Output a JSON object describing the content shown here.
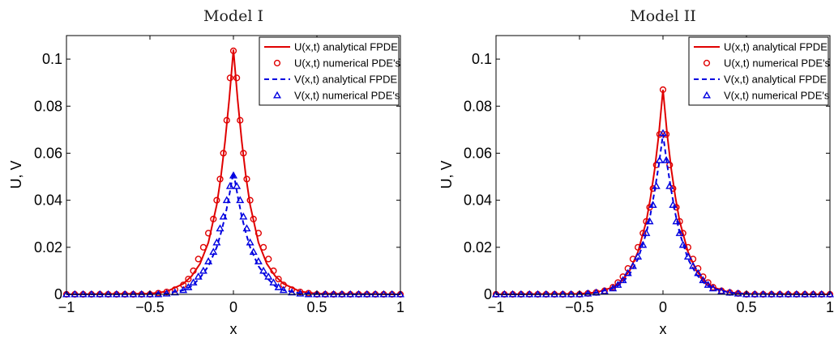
{
  "chart_data": [
    {
      "type": "line",
      "title": "Model I",
      "xlabel": "x",
      "ylabel": "U, V",
      "xlim": [
        -1,
        1
      ],
      "ylim": [
        0,
        0.11
      ],
      "xticks": [
        -1,
        -0.5,
        0,
        0.5,
        1
      ],
      "xtick_labels": [
        "−1",
        "−0.5",
        "0",
        "0.5",
        "1"
      ],
      "yticks": [
        0,
        0.02,
        0.04,
        0.06,
        0.08,
        0.1
      ],
      "ytick_labels": [
        "0",
        "0.02",
        "0.04",
        "0.06",
        "0.08",
        "0.1"
      ],
      "grid": false,
      "legend_position": "top-right",
      "colors": {
        "U": "#e00000",
        "V": "#0000e0"
      },
      "series": [
        {
          "name": "U(x,t) analytical FPDE",
          "style": "solid-line",
          "color": "#e00000",
          "x": [
            -1,
            -0.5,
            -0.4,
            -0.3,
            -0.25,
            -0.2,
            -0.15,
            -0.1,
            -0.075,
            -0.05,
            -0.025,
            0,
            0.025,
            0.05,
            0.075,
            0.1,
            0.15,
            0.2,
            0.25,
            0.3,
            0.4,
            0.5,
            1
          ],
          "y": [
            0.0,
            0.0003,
            0.0012,
            0.0045,
            0.0078,
            0.013,
            0.022,
            0.038,
            0.05,
            0.065,
            0.083,
            0.104,
            0.083,
            0.065,
            0.05,
            0.038,
            0.022,
            0.013,
            0.0078,
            0.0045,
            0.0012,
            0.0003,
            0.0
          ]
        },
        {
          "name": "U(x,t) numerical PDE's",
          "style": "circle-markers",
          "color": "#e00000",
          "x": [
            -1,
            -0.95,
            -0.9,
            -0.85,
            -0.8,
            -0.75,
            -0.7,
            -0.65,
            -0.6,
            -0.55,
            -0.5,
            -0.45,
            -0.4,
            -0.35,
            -0.3,
            -0.27,
            -0.24,
            -0.21,
            -0.18,
            -0.15,
            -0.12,
            -0.1,
            -0.08,
            -0.06,
            -0.04,
            -0.02,
            0,
            0.02,
            0.04,
            0.06,
            0.08,
            0.1,
            0.12,
            0.15,
            0.18,
            0.21,
            0.24,
            0.27,
            0.3,
            0.35,
            0.4,
            0.45,
            0.5,
            0.55,
            0.6,
            0.65,
            0.7,
            0.75,
            0.8,
            0.85,
            0.9,
            0.95,
            1
          ],
          "y": [
            0,
            0,
            0,
            0,
            0,
            0,
            0,
            0,
            0,
            0,
            0,
            0.0005,
            0.001,
            0.002,
            0.004,
            0.0065,
            0.01,
            0.015,
            0.02,
            0.026,
            0.032,
            0.04,
            0.049,
            0.06,
            0.074,
            0.092,
            0.1035,
            0.092,
            0.074,
            0.06,
            0.049,
            0.04,
            0.032,
            0.026,
            0.02,
            0.015,
            0.01,
            0.0065,
            0.004,
            0.002,
            0.001,
            0.0005,
            0,
            0,
            0,
            0,
            0,
            0,
            0,
            0,
            0,
            0,
            0
          ]
        },
        {
          "name": "V(x,t) analytical FPDE",
          "style": "dashed-line",
          "color": "#0000e0",
          "x": [
            -1,
            -0.5,
            -0.4,
            -0.3,
            -0.25,
            -0.2,
            -0.15,
            -0.1,
            -0.075,
            -0.05,
            -0.025,
            0,
            0.025,
            0.05,
            0.075,
            0.1,
            0.15,
            0.2,
            0.25,
            0.3,
            0.4,
            0.5,
            1
          ],
          "y": [
            0.0,
            0.0001,
            0.0004,
            0.0018,
            0.0035,
            0.007,
            0.012,
            0.02,
            0.026,
            0.033,
            0.042,
            0.052,
            0.042,
            0.033,
            0.026,
            0.02,
            0.012,
            0.007,
            0.0035,
            0.0018,
            0.0004,
            0.0001,
            0.0
          ]
        },
        {
          "name": "V(x,t) numerical PDE's",
          "style": "triangle-markers",
          "color": "#0000e0",
          "x": [
            -1,
            -0.95,
            -0.9,
            -0.85,
            -0.8,
            -0.75,
            -0.7,
            -0.65,
            -0.6,
            -0.55,
            -0.5,
            -0.45,
            -0.4,
            -0.35,
            -0.3,
            -0.27,
            -0.24,
            -0.21,
            -0.18,
            -0.15,
            -0.12,
            -0.1,
            -0.08,
            -0.06,
            -0.04,
            -0.02,
            0,
            0.02,
            0.04,
            0.06,
            0.08,
            0.1,
            0.12,
            0.15,
            0.18,
            0.21,
            0.24,
            0.27,
            0.3,
            0.35,
            0.4,
            0.45,
            0.5,
            0.55,
            0.6,
            0.65,
            0.7,
            0.75,
            0.8,
            0.85,
            0.9,
            0.95,
            1
          ],
          "y": [
            0,
            0,
            0,
            0,
            0,
            0,
            0,
            0,
            0,
            0,
            0,
            0,
            0.0003,
            0.0008,
            0.0018,
            0.003,
            0.005,
            0.0075,
            0.01,
            0.014,
            0.018,
            0.022,
            0.028,
            0.033,
            0.04,
            0.046,
            0.0505,
            0.046,
            0.04,
            0.033,
            0.028,
            0.022,
            0.018,
            0.014,
            0.01,
            0.0075,
            0.005,
            0.003,
            0.0018,
            0.0008,
            0.0003,
            0,
            0,
            0,
            0,
            0,
            0,
            0,
            0,
            0,
            0,
            0,
            0
          ]
        }
      ]
    },
    {
      "type": "line",
      "title": "Model II",
      "xlabel": "x",
      "ylabel": "U, V",
      "xlim": [
        -1,
        1
      ],
      "ylim": [
        0,
        0.11
      ],
      "xticks": [
        -1,
        -0.5,
        0,
        0.5,
        1
      ],
      "xtick_labels": [
        "−1",
        "−0.5",
        "0",
        "0.5",
        "1"
      ],
      "yticks": [
        0,
        0.02,
        0.04,
        0.06,
        0.08,
        0.1
      ],
      "ytick_labels": [
        "0",
        "0.02",
        "0.04",
        "0.06",
        "0.08",
        "0.1"
      ],
      "grid": false,
      "legend_position": "top-right",
      "colors": {
        "U": "#e00000",
        "V": "#0000e0"
      },
      "series": [
        {
          "name": "U(x,t) analytical FPDE",
          "style": "solid-line",
          "color": "#e00000",
          "x": [
            -1,
            -0.5,
            -0.4,
            -0.3,
            -0.25,
            -0.2,
            -0.15,
            -0.1,
            -0.075,
            -0.05,
            -0.025,
            0,
            0.025,
            0.05,
            0.075,
            0.1,
            0.15,
            0.2,
            0.25,
            0.3,
            0.4,
            0.5,
            1
          ],
          "y": [
            0.0,
            0.0002,
            0.0008,
            0.003,
            0.0055,
            0.01,
            0.018,
            0.031,
            0.041,
            0.053,
            0.068,
            0.087,
            0.068,
            0.053,
            0.041,
            0.031,
            0.018,
            0.01,
            0.0055,
            0.003,
            0.0008,
            0.0002,
            0.0
          ]
        },
        {
          "name": "U(x,t) numerical PDE's",
          "style": "circle-markers",
          "color": "#e00000",
          "x": [
            -1,
            -0.95,
            -0.9,
            -0.85,
            -0.8,
            -0.75,
            -0.7,
            -0.65,
            -0.6,
            -0.55,
            -0.5,
            -0.45,
            -0.4,
            -0.35,
            -0.3,
            -0.27,
            -0.24,
            -0.21,
            -0.18,
            -0.15,
            -0.12,
            -0.1,
            -0.08,
            -0.06,
            -0.04,
            -0.02,
            0,
            0.02,
            0.04,
            0.06,
            0.08,
            0.1,
            0.12,
            0.15,
            0.18,
            0.21,
            0.24,
            0.27,
            0.3,
            0.35,
            0.4,
            0.45,
            0.5,
            0.55,
            0.6,
            0.65,
            0.7,
            0.75,
            0.8,
            0.85,
            0.9,
            0.95,
            1
          ],
          "y": [
            0,
            0,
            0,
            0,
            0,
            0,
            0,
            0,
            0,
            0,
            0,
            0.0004,
            0.0008,
            0.0015,
            0.003,
            0.005,
            0.0075,
            0.011,
            0.015,
            0.02,
            0.026,
            0.031,
            0.037,
            0.045,
            0.055,
            0.068,
            0.087,
            0.068,
            0.055,
            0.045,
            0.037,
            0.031,
            0.026,
            0.02,
            0.015,
            0.011,
            0.0075,
            0.005,
            0.003,
            0.0015,
            0.0008,
            0.0004,
            0,
            0,
            0,
            0,
            0,
            0,
            0,
            0,
            0,
            0,
            0
          ]
        },
        {
          "name": "V(x,t) analytical FPDE",
          "style": "dashed-line",
          "color": "#0000e0",
          "x": [
            -1,
            -0.5,
            -0.4,
            -0.3,
            -0.25,
            -0.2,
            -0.15,
            -0.1,
            -0.075,
            -0.05,
            -0.025,
            0,
            0.025,
            0.05,
            0.075,
            0.1,
            0.15,
            0.2,
            0.25,
            0.3,
            0.4,
            0.5,
            1
          ],
          "y": [
            0.0,
            0.0002,
            0.0007,
            0.0025,
            0.0045,
            0.0085,
            0.015,
            0.026,
            0.034,
            0.044,
            0.055,
            0.068,
            0.055,
            0.044,
            0.034,
            0.026,
            0.015,
            0.0085,
            0.0045,
            0.0025,
            0.0007,
            0.0002,
            0.0
          ]
        },
        {
          "name": "V(x,t) numerical PDE's",
          "style": "triangle-markers",
          "color": "#0000e0",
          "x": [
            -1,
            -0.95,
            -0.9,
            -0.85,
            -0.8,
            -0.75,
            -0.7,
            -0.65,
            -0.6,
            -0.55,
            -0.5,
            -0.45,
            -0.4,
            -0.35,
            -0.3,
            -0.27,
            -0.24,
            -0.21,
            -0.18,
            -0.15,
            -0.12,
            -0.1,
            -0.08,
            -0.06,
            -0.04,
            -0.02,
            0,
            0.02,
            0.04,
            0.06,
            0.08,
            0.1,
            0.12,
            0.15,
            0.18,
            0.21,
            0.24,
            0.27,
            0.3,
            0.35,
            0.4,
            0.45,
            0.5,
            0.55,
            0.6,
            0.65,
            0.7,
            0.75,
            0.8,
            0.85,
            0.9,
            0.95,
            1
          ],
          "y": [
            0,
            0,
            0,
            0,
            0,
            0,
            0,
            0,
            0,
            0,
            0,
            0.0003,
            0.0007,
            0.0013,
            0.0025,
            0.004,
            0.006,
            0.009,
            0.012,
            0.016,
            0.021,
            0.026,
            0.031,
            0.038,
            0.046,
            0.057,
            0.0685,
            0.057,
            0.046,
            0.038,
            0.031,
            0.026,
            0.021,
            0.016,
            0.012,
            0.009,
            0.006,
            0.004,
            0.0025,
            0.0013,
            0.0007,
            0.0003,
            0,
            0,
            0,
            0,
            0,
            0,
            0,
            0,
            0,
            0,
            0
          ]
        }
      ]
    }
  ]
}
